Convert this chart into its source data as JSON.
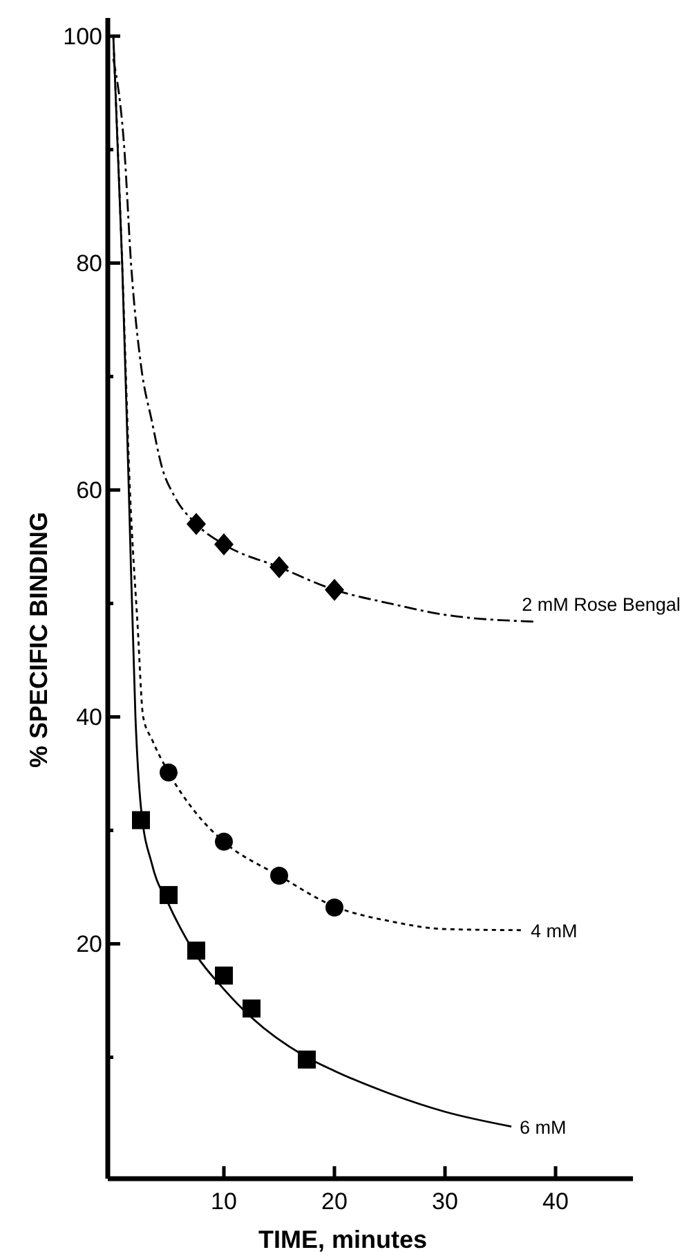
{
  "chart_data": {
    "type": "scatter",
    "xlabel": "TIME, minutes",
    "ylabel": "% SPECIFIC BINDING",
    "xlim": [
      -0.5,
      47
    ],
    "ylim": [
      -0.7,
      101.6
    ],
    "xticks": [
      10,
      20,
      30,
      40
    ],
    "yticks": [
      {
        "value": 10,
        "label": null
      },
      20,
      {
        "value": 30,
        "label": null
      },
      40,
      {
        "value": 50,
        "label": null
      },
      60,
      {
        "value": 70,
        "label": null
      },
      80,
      {
        "value": 90,
        "label": null
      },
      100
    ],
    "grid": false,
    "series": [
      {
        "type": "line",
        "name": "2 mM Rose Bengal",
        "color": "#000000",
        "line_style": "dashed",
        "marker": "none",
        "x": [
          0,
          1,
          1.6,
          2.5,
          3.5,
          4.4,
          5.5,
          7.5,
          10,
          15,
          20,
          25,
          30,
          38
        ],
        "values": [
          98,
          90,
          80,
          71,
          66,
          62,
          59.5,
          57,
          55.2,
          53.2,
          51.2,
          50,
          49,
          48.4
        ]
      },
      {
        "type": "line",
        "name": "4 mM",
        "color": "#000000",
        "line_style": "dotted",
        "marker": "none",
        "x": [
          0,
          0.8,
          1.5,
          2.2,
          2.7,
          3.5,
          5,
          7.5,
          10,
          15,
          20,
          25,
          30,
          37
        ],
        "values": [
          100,
          80,
          60,
          48,
          40,
          38,
          35.1,
          31.5,
          29,
          26,
          23.3,
          22,
          21.3,
          21.2
        ]
      },
      {
        "type": "line",
        "name": "6 mM",
        "color": "#000000",
        "line_style": "solid",
        "marker": "none",
        "x": [
          0,
          0.8,
          1.4,
          2,
          2.5,
          3.5,
          5,
          7.5,
          10,
          12.5,
          17.5,
          20,
          25,
          30,
          36
        ],
        "values": [
          100,
          80,
          60,
          40,
          32,
          27,
          23.5,
          19,
          16,
          13.5,
          10,
          8.8,
          6.8,
          5.2,
          3.9
        ]
      },
      {
        "color": "#000000",
        "marker": "diamond",
        "x": [
          7.5,
          10,
          15,
          20
        ],
        "values": [
          57,
          55.2,
          53.2,
          51.2
        ]
      },
      {
        "color": "#000000",
        "marker": "circle",
        "x": [
          5,
          10,
          15,
          20
        ],
        "values": [
          35.1,
          29,
          26,
          23.2
        ]
      },
      {
        "color": "#000000",
        "marker": "square",
        "x": [
          2.5,
          5,
          7.5,
          10,
          12.5,
          17.5
        ],
        "values": [
          30.9,
          24.3,
          19.4,
          17.2,
          14.3,
          9.8
        ]
      }
    ]
  }
}
